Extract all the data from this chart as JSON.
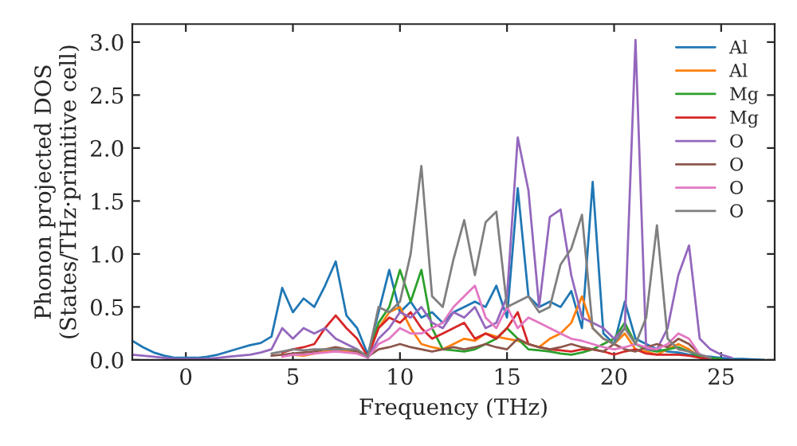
{
  "chart_data": {
    "type": "line",
    "xlabel": "Frequency (THz)",
    "ylabel": "Phonon projected DOS\n(States/THz·primitive cell)",
    "x": [
      -2.5,
      -2,
      -1.5,
      -1,
      -0.5,
      0,
      0.5,
      1,
      1.5,
      2,
      2.5,
      3,
      3.5,
      4,
      4.5,
      5,
      5.5,
      6,
      6.5,
      7,
      7.5,
      8,
      8.5,
      9,
      9.5,
      10,
      10.5,
      11,
      11.5,
      12,
      12.5,
      13,
      13.5,
      14,
      14.5,
      15,
      15.5,
      16,
      16.5,
      17,
      17.5,
      18,
      18.5,
      19,
      19.5,
      20,
      20.5,
      21,
      21.5,
      22,
      22.5,
      23,
      23.5,
      24,
      24.5,
      25,
      25.5,
      26,
      27
    ],
    "series": [
      {
        "name": "Al",
        "color": "#1f77b4",
        "values": [
          0.18,
          0.12,
          0.07,
          0.04,
          0.02,
          0.02,
          0.02,
          0.03,
          0.05,
          0.08,
          0.11,
          0.14,
          0.16,
          0.22,
          0.68,
          0.45,
          0.58,
          0.5,
          0.7,
          0.93,
          0.42,
          0.3,
          0.05,
          0.45,
          0.85,
          0.45,
          0.55,
          0.4,
          0.45,
          0.35,
          0.45,
          0.5,
          0.55,
          0.5,
          0.7,
          0.4,
          1.62,
          0.6,
          0.5,
          0.55,
          0.5,
          0.65,
          0.3,
          1.68,
          0.25,
          0.15,
          0.55,
          0.2,
          0.15,
          0.1,
          0.08,
          0.07,
          0.05,
          0.04,
          0.03,
          0.02,
          0.01,
          0.01,
          0
        ]
      },
      {
        "name": "Al",
        "color": "#ff7f0e",
        "values": [
          null,
          null,
          null,
          null,
          null,
          null,
          null,
          null,
          null,
          null,
          null,
          null,
          null,
          null,
          0.04,
          0.05,
          0.04,
          0.06,
          0.08,
          0.1,
          0.08,
          0.06,
          0.03,
          0.3,
          0.45,
          0.5,
          0.3,
          0.15,
          0.12,
          0.1,
          0.15,
          0.2,
          0.18,
          0.25,
          0.22,
          0.2,
          0.18,
          0.15,
          0.12,
          0.2,
          0.25,
          0.35,
          0.6,
          0.3,
          0.2,
          0.15,
          0.25,
          0.1,
          0.08,
          0.05,
          0.1,
          0.15,
          0.1,
          0.03,
          0.02,
          null,
          null,
          null,
          null
        ]
      },
      {
        "name": "Mg",
        "color": "#2ca02c",
        "values": [
          null,
          null,
          null,
          null,
          null,
          null,
          null,
          null,
          null,
          null,
          null,
          null,
          null,
          null,
          null,
          null,
          null,
          null,
          null,
          null,
          null,
          0.08,
          0.03,
          0.35,
          0.5,
          0.85,
          0.55,
          0.85,
          0.3,
          0.1,
          0.09,
          0.08,
          0.1,
          0.15,
          0.2,
          0.3,
          0.2,
          0.1,
          0.09,
          0.08,
          0.06,
          0.05,
          0.07,
          0.1,
          0.15,
          0.2,
          0.35,
          0.15,
          0.1,
          0.08,
          0.1,
          0.12,
          0.08,
          0.03,
          0.02,
          0.01,
          null,
          null,
          null
        ]
      },
      {
        "name": "Mg",
        "color": "#d62728",
        "values": [
          null,
          null,
          null,
          null,
          null,
          null,
          null,
          null,
          null,
          null,
          null,
          null,
          null,
          null,
          0.07,
          0.1,
          0.12,
          0.15,
          0.3,
          0.42,
          0.3,
          0.2,
          0.03,
          0.3,
          0.4,
          0.35,
          0.45,
          0.3,
          0.2,
          0.25,
          0.3,
          0.35,
          0.2,
          0.25,
          0.2,
          0.3,
          0.45,
          0.15,
          0.12,
          0.1,
          0.09,
          0.08,
          0.1,
          0.1,
          0.08,
          0.05,
          0.08,
          0.1,
          0.06,
          0.05,
          0.05,
          0.05,
          0.04,
          0.02,
          0.01,
          null,
          null,
          null,
          null
        ]
      },
      {
        "name": "O",
        "color": "#9467bd",
        "values": [
          0.05,
          0.04,
          0.03,
          0.02,
          0.01,
          0.01,
          0.01,
          0.01,
          0.02,
          0.03,
          0.04,
          0.05,
          0.07,
          0.1,
          0.3,
          0.2,
          0.3,
          0.25,
          0.3,
          0.2,
          0.15,
          0.1,
          0.02,
          0.2,
          0.3,
          0.45,
          0.4,
          0.5,
          0.35,
          0.3,
          0.45,
          0.4,
          0.5,
          0.3,
          0.35,
          0.6,
          2.1,
          1.6,
          0.5,
          1.35,
          1.42,
          0.8,
          0.4,
          0.35,
          0.3,
          0.2,
          0.3,
          3.02,
          0.1,
          0.1,
          0.3,
          0.8,
          1.08,
          0.2,
          0.1,
          0.05,
          0.02,
          null,
          null
        ]
      },
      {
        "name": "O",
        "color": "#8c564b",
        "values": [
          null,
          null,
          null,
          null,
          null,
          null,
          null,
          null,
          null,
          null,
          null,
          null,
          null,
          0.04,
          0.05,
          0.06,
          0.07,
          0.08,
          0.1,
          0.12,
          0.1,
          0.08,
          0.03,
          0.1,
          0.12,
          0.15,
          0.12,
          0.1,
          0.08,
          0.1,
          0.12,
          0.1,
          0.12,
          0.15,
          0.12,
          0.1,
          0.2,
          0.15,
          0.12,
          0.1,
          0.12,
          0.15,
          0.12,
          0.1,
          0.08,
          0.15,
          0.1,
          0.08,
          0.12,
          0.15,
          0.12,
          0.2,
          0.15,
          0.05,
          0.02,
          null,
          null,
          null,
          null
        ]
      },
      {
        "name": "O",
        "color": "#e377c2",
        "values": [
          null,
          null,
          null,
          null,
          null,
          null,
          null,
          null,
          null,
          null,
          null,
          null,
          null,
          null,
          0.03,
          0.05,
          0.05,
          0.06,
          0.07,
          0.08,
          0.07,
          0.06,
          0.02,
          0.15,
          0.2,
          0.3,
          0.25,
          0.25,
          0.3,
          0.35,
          0.5,
          0.6,
          0.7,
          0.4,
          0.3,
          0.5,
          0.3,
          0.4,
          0.35,
          0.3,
          0.25,
          0.2,
          0.18,
          0.15,
          0.12,
          0.1,
          0.12,
          0.15,
          0.12,
          0.1,
          0.15,
          0.25,
          0.2,
          0.05,
          0.02,
          null,
          null,
          null,
          null
        ]
      },
      {
        "name": "O",
        "color": "#7f7f7f",
        "values": [
          null,
          null,
          null,
          null,
          null,
          null,
          null,
          null,
          null,
          null,
          null,
          null,
          null,
          0.06,
          0.08,
          0.1,
          0.09,
          0.1,
          0.1,
          0.1,
          0.1,
          0.1,
          0.03,
          0.5,
          0.45,
          0.55,
          1.0,
          1.83,
          0.6,
          0.5,
          0.95,
          1.32,
          0.8,
          1.3,
          1.4,
          0.5,
          0.55,
          0.6,
          0.45,
          0.5,
          0.9,
          1.05,
          1.37,
          0.3,
          0.2,
          0.15,
          0.3,
          0.15,
          0.4,
          1.27,
          0.2,
          0.1,
          0.08,
          0.05,
          0.02,
          null,
          null,
          null,
          null
        ]
      }
    ],
    "xlim": [
      -2.5,
      27.5
    ],
    "ylim": [
      0,
      3.17
    ],
    "xticks": [
      0,
      5,
      10,
      15,
      20,
      25
    ],
    "yticks": [
      {
        "value": 0,
        "label": "0.0"
      },
      {
        "value": 0.5,
        "label": "0.5"
      },
      {
        "value": 1,
        "label": "1.0"
      },
      {
        "value": 1.5,
        "label": "1.5"
      },
      {
        "value": 2,
        "label": "2.0"
      },
      {
        "value": 2.5,
        "label": "2.5"
      },
      {
        "value": 3,
        "label": "3.0"
      }
    ],
    "legend": "top right",
    "grid": false,
    "marker": "none",
    "line_style": "solid"
  }
}
